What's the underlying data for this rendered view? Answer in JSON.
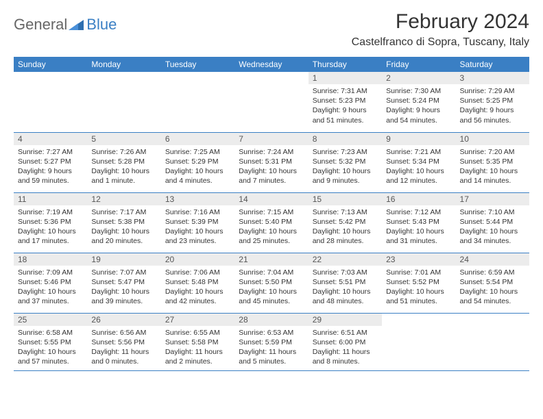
{
  "brand": {
    "general": "General",
    "blue": "Blue"
  },
  "title": "February 2024",
  "location": "Castelfranco di Sopra, Tuscany, Italy",
  "colors": {
    "header_bg": "#3a7fc4",
    "header_fg": "#ffffff",
    "daynum_bg": "#ececec",
    "row_border": "#3a7fc4"
  },
  "weekdays": [
    "Sunday",
    "Monday",
    "Tuesday",
    "Wednesday",
    "Thursday",
    "Friday",
    "Saturday"
  ],
  "weeks": [
    [
      {
        "blank": true
      },
      {
        "blank": true
      },
      {
        "blank": true
      },
      {
        "blank": true
      },
      {
        "day": "1",
        "sunrise": "Sunrise: 7:31 AM",
        "sunset": "Sunset: 5:23 PM",
        "daylight1": "Daylight: 9 hours",
        "daylight2": "and 51 minutes."
      },
      {
        "day": "2",
        "sunrise": "Sunrise: 7:30 AM",
        "sunset": "Sunset: 5:24 PM",
        "daylight1": "Daylight: 9 hours",
        "daylight2": "and 54 minutes."
      },
      {
        "day": "3",
        "sunrise": "Sunrise: 7:29 AM",
        "sunset": "Sunset: 5:25 PM",
        "daylight1": "Daylight: 9 hours",
        "daylight2": "and 56 minutes."
      }
    ],
    [
      {
        "day": "4",
        "sunrise": "Sunrise: 7:27 AM",
        "sunset": "Sunset: 5:27 PM",
        "daylight1": "Daylight: 9 hours",
        "daylight2": "and 59 minutes."
      },
      {
        "day": "5",
        "sunrise": "Sunrise: 7:26 AM",
        "sunset": "Sunset: 5:28 PM",
        "daylight1": "Daylight: 10 hours",
        "daylight2": "and 1 minute."
      },
      {
        "day": "6",
        "sunrise": "Sunrise: 7:25 AM",
        "sunset": "Sunset: 5:29 PM",
        "daylight1": "Daylight: 10 hours",
        "daylight2": "and 4 minutes."
      },
      {
        "day": "7",
        "sunrise": "Sunrise: 7:24 AM",
        "sunset": "Sunset: 5:31 PM",
        "daylight1": "Daylight: 10 hours",
        "daylight2": "and 7 minutes."
      },
      {
        "day": "8",
        "sunrise": "Sunrise: 7:23 AM",
        "sunset": "Sunset: 5:32 PM",
        "daylight1": "Daylight: 10 hours",
        "daylight2": "and 9 minutes."
      },
      {
        "day": "9",
        "sunrise": "Sunrise: 7:21 AM",
        "sunset": "Sunset: 5:34 PM",
        "daylight1": "Daylight: 10 hours",
        "daylight2": "and 12 minutes."
      },
      {
        "day": "10",
        "sunrise": "Sunrise: 7:20 AM",
        "sunset": "Sunset: 5:35 PM",
        "daylight1": "Daylight: 10 hours",
        "daylight2": "and 14 minutes."
      }
    ],
    [
      {
        "day": "11",
        "sunrise": "Sunrise: 7:19 AM",
        "sunset": "Sunset: 5:36 PM",
        "daylight1": "Daylight: 10 hours",
        "daylight2": "and 17 minutes."
      },
      {
        "day": "12",
        "sunrise": "Sunrise: 7:17 AM",
        "sunset": "Sunset: 5:38 PM",
        "daylight1": "Daylight: 10 hours",
        "daylight2": "and 20 minutes."
      },
      {
        "day": "13",
        "sunrise": "Sunrise: 7:16 AM",
        "sunset": "Sunset: 5:39 PM",
        "daylight1": "Daylight: 10 hours",
        "daylight2": "and 23 minutes."
      },
      {
        "day": "14",
        "sunrise": "Sunrise: 7:15 AM",
        "sunset": "Sunset: 5:40 PM",
        "daylight1": "Daylight: 10 hours",
        "daylight2": "and 25 minutes."
      },
      {
        "day": "15",
        "sunrise": "Sunrise: 7:13 AM",
        "sunset": "Sunset: 5:42 PM",
        "daylight1": "Daylight: 10 hours",
        "daylight2": "and 28 minutes."
      },
      {
        "day": "16",
        "sunrise": "Sunrise: 7:12 AM",
        "sunset": "Sunset: 5:43 PM",
        "daylight1": "Daylight: 10 hours",
        "daylight2": "and 31 minutes."
      },
      {
        "day": "17",
        "sunrise": "Sunrise: 7:10 AM",
        "sunset": "Sunset: 5:44 PM",
        "daylight1": "Daylight: 10 hours",
        "daylight2": "and 34 minutes."
      }
    ],
    [
      {
        "day": "18",
        "sunrise": "Sunrise: 7:09 AM",
        "sunset": "Sunset: 5:46 PM",
        "daylight1": "Daylight: 10 hours",
        "daylight2": "and 37 minutes."
      },
      {
        "day": "19",
        "sunrise": "Sunrise: 7:07 AM",
        "sunset": "Sunset: 5:47 PM",
        "daylight1": "Daylight: 10 hours",
        "daylight2": "and 39 minutes."
      },
      {
        "day": "20",
        "sunrise": "Sunrise: 7:06 AM",
        "sunset": "Sunset: 5:48 PM",
        "daylight1": "Daylight: 10 hours",
        "daylight2": "and 42 minutes."
      },
      {
        "day": "21",
        "sunrise": "Sunrise: 7:04 AM",
        "sunset": "Sunset: 5:50 PM",
        "daylight1": "Daylight: 10 hours",
        "daylight2": "and 45 minutes."
      },
      {
        "day": "22",
        "sunrise": "Sunrise: 7:03 AM",
        "sunset": "Sunset: 5:51 PM",
        "daylight1": "Daylight: 10 hours",
        "daylight2": "and 48 minutes."
      },
      {
        "day": "23",
        "sunrise": "Sunrise: 7:01 AM",
        "sunset": "Sunset: 5:52 PM",
        "daylight1": "Daylight: 10 hours",
        "daylight2": "and 51 minutes."
      },
      {
        "day": "24",
        "sunrise": "Sunrise: 6:59 AM",
        "sunset": "Sunset: 5:54 PM",
        "daylight1": "Daylight: 10 hours",
        "daylight2": "and 54 minutes."
      }
    ],
    [
      {
        "day": "25",
        "sunrise": "Sunrise: 6:58 AM",
        "sunset": "Sunset: 5:55 PM",
        "daylight1": "Daylight: 10 hours",
        "daylight2": "and 57 minutes."
      },
      {
        "day": "26",
        "sunrise": "Sunrise: 6:56 AM",
        "sunset": "Sunset: 5:56 PM",
        "daylight1": "Daylight: 11 hours",
        "daylight2": "and 0 minutes."
      },
      {
        "day": "27",
        "sunrise": "Sunrise: 6:55 AM",
        "sunset": "Sunset: 5:58 PM",
        "daylight1": "Daylight: 11 hours",
        "daylight2": "and 2 minutes."
      },
      {
        "day": "28",
        "sunrise": "Sunrise: 6:53 AM",
        "sunset": "Sunset: 5:59 PM",
        "daylight1": "Daylight: 11 hours",
        "daylight2": "and 5 minutes."
      },
      {
        "day": "29",
        "sunrise": "Sunrise: 6:51 AM",
        "sunset": "Sunset: 6:00 PM",
        "daylight1": "Daylight: 11 hours",
        "daylight2": "and 8 minutes."
      },
      {
        "blank": true
      },
      {
        "blank": true
      }
    ]
  ]
}
